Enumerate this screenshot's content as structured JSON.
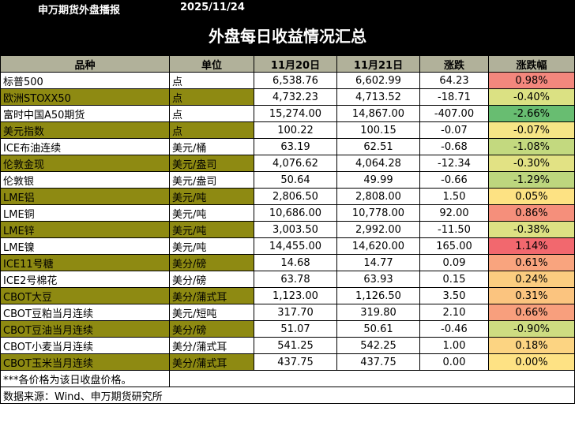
{
  "header": {
    "brand": "申万期货外盘播报",
    "date": "2025/11/24"
  },
  "title": "外盘每日收益情况汇总",
  "columns": [
    "品种",
    "单位",
    "11月20日",
    "11月21日",
    "涨跌",
    "涨跌幅"
  ],
  "rows": [
    {
      "name": "标普500",
      "unit": "点",
      "d20": "6,538.76",
      "d21": "6,602.99",
      "chg": "64.23",
      "pct": "0.98%",
      "pct_color": "#f3877d",
      "olive": false
    },
    {
      "name": "欧洲STOXX50",
      "unit": "点",
      "d20": "4,732.23",
      "d21": "4,713.52",
      "chg": "-18.71",
      "pct": "-0.40%",
      "pct_color": "#dbe183",
      "olive": true
    },
    {
      "name": "富时中国A50期货",
      "unit": "点",
      "d20": "15,274.00",
      "d21": "14,867.00",
      "chg": "-407.00",
      "pct": "-2.66%",
      "pct_color": "#68bd71",
      "olive": false
    },
    {
      "name": "美元指数",
      "unit": "点",
      "d20": "100.22",
      "d21": "100.15",
      "chg": "-0.07",
      "pct": "-0.07%",
      "pct_color": "#f6e586",
      "olive": true
    },
    {
      "name": "ICE布油连续",
      "unit": "美元/桶",
      "d20": "63.19",
      "d21": "62.51",
      "chg": "-0.68",
      "pct": "-1.08%",
      "pct_color": "#c3d97f",
      "olive": false
    },
    {
      "name": "伦敦金现",
      "unit": "美元/盎司",
      "d20": "4,076.62",
      "d21": "4,064.28",
      "chg": "-12.34",
      "pct": "-0.30%",
      "pct_color": "#e2e284",
      "olive": true
    },
    {
      "name": "伦敦银",
      "unit": "美元/盎司",
      "d20": "50.64",
      "d21": "49.99",
      "chg": "-0.66",
      "pct": "-1.29%",
      "pct_color": "#bdd67e",
      "olive": false
    },
    {
      "name": "LME铝",
      "unit": "美元/吨",
      "d20": "2,806.50",
      "d21": "2,808.00",
      "chg": "1.50",
      "pct": "0.05%",
      "pct_color": "#fde283",
      "olive": true
    },
    {
      "name": "LME铜",
      "unit": "美元/吨",
      "d20": "10,686.00",
      "d21": "10,778.00",
      "chg": "92.00",
      "pct": "0.86%",
      "pct_color": "#f58f7b",
      "olive": false
    },
    {
      "name": "LME锌",
      "unit": "美元/吨",
      "d20": "3,003.50",
      "d21": "2,992.00",
      "chg": "-11.50",
      "pct": "-0.38%",
      "pct_color": "#dde183",
      "olive": true
    },
    {
      "name": "LME镍",
      "unit": "美元/吨",
      "d20": "14,455.00",
      "d21": "14,620.00",
      "chg": "165.00",
      "pct": "1.14%",
      "pct_color": "#f2686e",
      "olive": false
    },
    {
      "name": "ICE11号糖",
      "unit": "美分/磅",
      "d20": "14.68",
      "d21": "14.77",
      "chg": "0.09",
      "pct": "0.61%",
      "pct_color": "#f9a47e",
      "olive": true
    },
    {
      "name": "ICE2号棉花",
      "unit": "美分/磅",
      "d20": "63.78",
      "d21": "63.93",
      "chg": "0.15",
      "pct": "0.24%",
      "pct_color": "#fbcd80",
      "olive": false
    },
    {
      "name": "CBOT大豆",
      "unit": "美分/蒲式耳",
      "d20": "1,123.00",
      "d21": "1,126.50",
      "chg": "3.50",
      "pct": "0.31%",
      "pct_color": "#fbc47f",
      "olive": true
    },
    {
      "name": "CBOT豆粕当月连续",
      "unit": "美元/短吨",
      "d20": "317.70",
      "d21": "319.80",
      "chg": "2.10",
      "pct": "0.66%",
      "pct_color": "#f89f7d",
      "olive": false
    },
    {
      "name": "CBOT豆油当月连续",
      "unit": "美分/磅",
      "d20": "51.07",
      "d21": "50.61",
      "chg": "-0.46",
      "pct": "-0.90%",
      "pct_color": "#cedc81",
      "olive": true
    },
    {
      "name": "CBOT小麦当月连续",
      "unit": "美分/蒲式耳",
      "d20": "541.25",
      "d21": "542.25",
      "chg": "1.00",
      "pct": "0.18%",
      "pct_color": "#fcd482",
      "olive": false
    },
    {
      "name": "CBOT玉米当月连续",
      "unit": "美分/蒲式耳",
      "d20": "437.75",
      "d21": "437.75",
      "chg": "0.00",
      "pct": "0.00%",
      "pct_color": "#fee284",
      "olive": true
    }
  ],
  "footnote": "***各价格为该日收盘价格。",
  "source": "数据来源：Wind、申万期货研究所"
}
